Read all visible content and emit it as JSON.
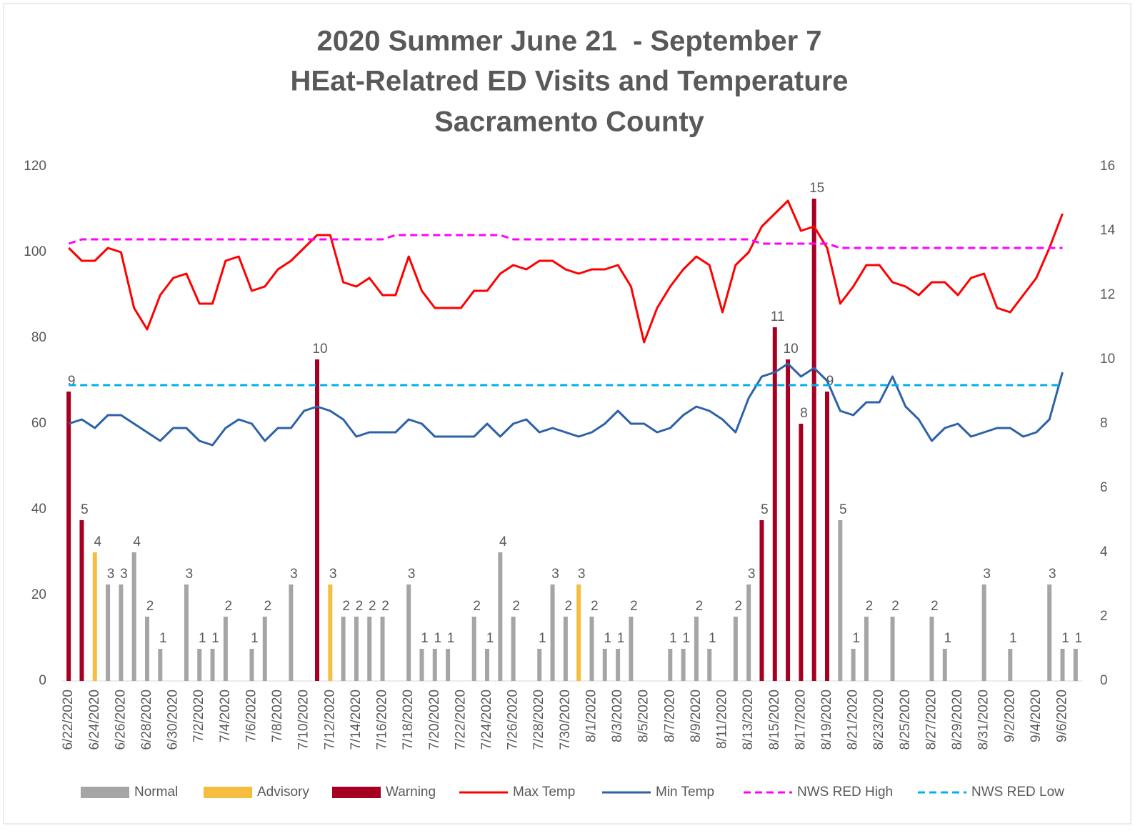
{
  "chart_data": {
    "type": "combo",
    "title": [
      "2020 Summer June 21  - September 7",
      "HEat-Relatred ED Visits and Temperature",
      "Sacramento County"
    ],
    "categories": [
      "6/22/2020",
      null,
      "6/24/2020",
      null,
      "6/26/2020",
      null,
      "6/28/2020",
      null,
      "6/30/2020",
      null,
      "7/2/2020",
      null,
      "7/4/2020",
      null,
      "7/6/2020",
      null,
      "7/8/2020",
      null,
      "7/10/2020",
      null,
      "7/12/2020",
      null,
      "7/14/2020",
      null,
      "7/16/2020",
      null,
      "7/18/2020",
      null,
      "7/20/2020",
      null,
      "7/22/2020",
      null,
      "7/24/2020",
      null,
      "7/26/2020",
      null,
      "7/28/2020",
      null,
      "7/30/2020",
      null,
      "8/1/2020",
      null,
      "8/3/2020",
      null,
      "8/5/2020",
      null,
      "8/7/2020",
      null,
      "8/9/2020",
      null,
      "8/11/2020",
      null,
      "8/13/2020",
      null,
      "8/15/2020",
      null,
      "8/17/2020",
      null,
      "8/19/2020",
      null,
      "8/21/2020",
      null,
      "8/23/2020",
      null,
      "8/25/2020",
      null,
      "8/27/2020",
      null,
      "8/29/2020",
      null,
      "8/31/2020",
      null,
      "9/2/2020",
      null,
      "9/4/2020",
      null,
      "9/6/2020",
      null
    ],
    "ylim": [
      0,
      120
    ],
    "yticks": [
      0,
      20,
      40,
      60,
      80,
      100,
      120
    ],
    "y2lim": [
      0,
      16
    ],
    "y2ticks": [
      0,
      2,
      4,
      6,
      8,
      10,
      12,
      14,
      16
    ],
    "legend": "bottom",
    "series": [
      {
        "name": "Normal",
        "type": "bar",
        "axis": "y2",
        "color": "#a5a5a5",
        "values": [
          null,
          null,
          null,
          3,
          3,
          4,
          2,
          1,
          null,
          3,
          1,
          1,
          2,
          null,
          1,
          2,
          null,
          3,
          null,
          null,
          null,
          2,
          2,
          2,
          2,
          null,
          3,
          1,
          1,
          1,
          null,
          2,
          1,
          4,
          2,
          null,
          1,
          3,
          2,
          null,
          2,
          1,
          1,
          2,
          null,
          null,
          1,
          1,
          2,
          1,
          null,
          2,
          3,
          null,
          null,
          null,
          null,
          null,
          null,
          5,
          1,
          2,
          null,
          2,
          null,
          null,
          2,
          1,
          null,
          null,
          3,
          null,
          1,
          null,
          null,
          3,
          1,
          1
        ]
      },
      {
        "name": "Advisory",
        "type": "bar",
        "axis": "y2",
        "color": "#f6bd41",
        "values": [
          null,
          null,
          4,
          null,
          null,
          null,
          null,
          null,
          null,
          null,
          null,
          null,
          null,
          null,
          null,
          null,
          null,
          null,
          null,
          null,
          3,
          null,
          null,
          null,
          null,
          null,
          null,
          null,
          null,
          null,
          null,
          null,
          null,
          null,
          null,
          null,
          null,
          null,
          null,
          3,
          null,
          null,
          null,
          null,
          null,
          null,
          null,
          null,
          null,
          null,
          null,
          null,
          null,
          null,
          null,
          null,
          null,
          null,
          null,
          null,
          null,
          null,
          null,
          null,
          null,
          null,
          null,
          null,
          null,
          null,
          null,
          null,
          null,
          null,
          null,
          null,
          null,
          null
        ]
      },
      {
        "name": "Warning",
        "type": "bar",
        "axis": "y2",
        "color": "#a50021",
        "values": [
          9,
          5,
          null,
          null,
          null,
          null,
          null,
          null,
          null,
          null,
          null,
          null,
          null,
          null,
          null,
          null,
          null,
          null,
          null,
          10,
          null,
          null,
          null,
          null,
          null,
          null,
          null,
          null,
          null,
          null,
          null,
          null,
          null,
          null,
          null,
          null,
          null,
          null,
          null,
          null,
          null,
          null,
          null,
          null,
          null,
          null,
          null,
          null,
          null,
          null,
          null,
          null,
          null,
          5,
          11,
          10,
          8,
          15,
          9,
          null,
          null,
          null,
          null,
          null,
          null,
          null,
          null,
          null,
          null,
          null,
          null,
          null,
          null,
          null,
          null,
          null,
          null,
          null
        ]
      },
      {
        "name": "Max Temp",
        "type": "line",
        "color": "#ff0000",
        "dashed": false,
        "values": [
          101,
          98,
          98,
          101,
          100,
          87,
          82,
          90,
          94,
          95,
          88,
          88,
          98,
          99,
          91,
          92,
          96,
          98,
          101,
          104,
          104,
          93,
          92,
          94,
          90,
          90,
          99,
          91,
          87,
          87,
          87,
          91,
          91,
          95,
          97,
          96,
          98,
          98,
          96,
          95,
          96,
          96,
          97,
          92,
          79,
          87,
          92,
          96,
          99,
          97,
          86,
          97,
          100,
          106,
          109,
          112,
          105,
          106,
          101,
          88,
          92,
          97,
          97,
          93,
          92,
          90,
          93,
          93,
          90,
          94,
          95,
          87,
          86,
          90,
          94,
          101,
          109,
          null
        ]
      },
      {
        "name": "Min Temp",
        "type": "line",
        "color": "#2e62a8",
        "dashed": false,
        "values": [
          60,
          61,
          59,
          62,
          62,
          60,
          58,
          56,
          59,
          59,
          56,
          55,
          59,
          61,
          60,
          56,
          59,
          59,
          63,
          64,
          63,
          61,
          57,
          58,
          58,
          58,
          61,
          60,
          57,
          57,
          57,
          57,
          60,
          57,
          60,
          61,
          58,
          59,
          58,
          57,
          58,
          60,
          63,
          60,
          60,
          58,
          59,
          62,
          64,
          63,
          61,
          58,
          66,
          71,
          72,
          74,
          71,
          73,
          70,
          63,
          62,
          65,
          65,
          71,
          64,
          61,
          56,
          59,
          60,
          57,
          58,
          59,
          59,
          57,
          58,
          61,
          72,
          null
        ]
      },
      {
        "name": "NWS RED High",
        "type": "line",
        "color": "#ff00ff",
        "dashed": true,
        "values": [
          102,
          103,
          103,
          103,
          103,
          103,
          103,
          103,
          103,
          103,
          103,
          103,
          103,
          103,
          103,
          103,
          103,
          103,
          103,
          103,
          103,
          103,
          103,
          103,
          103,
          104,
          104,
          104,
          104,
          104,
          104,
          104,
          104,
          104,
          103,
          103,
          103,
          103,
          103,
          103,
          103,
          103,
          103,
          103,
          103,
          103,
          103,
          103,
          103,
          103,
          103,
          103,
          103,
          102,
          102,
          102,
          102,
          102,
          102,
          101,
          101,
          101,
          101,
          101,
          101,
          101,
          101,
          101,
          101,
          101,
          101,
          101,
          101,
          101,
          101,
          101,
          101,
          null
        ]
      },
      {
        "name": "NWS RED Low",
        "type": "line",
        "color": "#00b0f0",
        "dashed": true,
        "values": [
          69,
          69,
          69,
          69,
          69,
          69,
          69,
          69,
          69,
          69,
          69,
          69,
          69,
          69,
          69,
          69,
          69,
          69,
          69,
          69,
          69,
          69,
          69,
          69,
          69,
          69,
          69,
          69,
          69,
          69,
          69,
          69,
          69,
          69,
          69,
          69,
          69,
          69,
          69,
          69,
          69,
          69,
          69,
          69,
          69,
          69,
          69,
          69,
          69,
          69,
          69,
          69,
          69,
          69,
          69,
          69,
          69,
          69,
          69,
          69,
          69,
          69,
          69,
          69,
          69,
          69,
          69,
          69,
          69,
          69,
          69,
          69,
          69,
          69,
          69,
          69,
          69,
          null
        ]
      }
    ]
  }
}
